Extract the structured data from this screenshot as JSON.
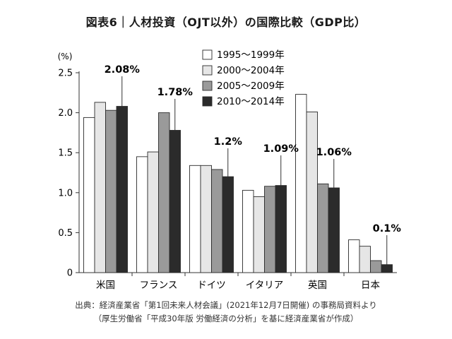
{
  "title": "図表6｜人材投資（OJT以外）の国際比較（GDP比）",
  "source_line1": "出典：経済産業省「第1回未来人材会議」(2021年12月7日開催) の事務局資料より",
  "source_line2": "（厚生労働省「平成30年版 労働経済の分析」を基に経済産業省が作成）",
  "chart_data": {
    "type": "bar",
    "title": "図表6｜人材投資（OJT以外）の国際比較（GDP比）",
    "unit_label": "(%)",
    "ylim": [
      0,
      2.5
    ],
    "yticks": [
      "0",
      "0.5",
      "1.0",
      "1.5",
      "2.0",
      "2.5"
    ],
    "grid": false,
    "legend_position": "top-right",
    "categories": [
      "米国",
      "フランス",
      "ドイツ",
      "イタリア",
      "英国",
      "日本"
    ],
    "series": [
      {
        "name": "1995〜1999年",
        "color": "#ffffff",
        "values": [
          1.94,
          1.45,
          1.34,
          1.03,
          2.23,
          0.41
        ]
      },
      {
        "name": "2000〜2004年",
        "color": "#e6e6e6",
        "values": [
          2.13,
          1.51,
          1.34,
          0.95,
          2.01,
          0.33
        ]
      },
      {
        "name": "2005〜2009年",
        "color": "#9a9a9a",
        "values": [
          2.03,
          2.0,
          1.29,
          1.08,
          1.11,
          0.15
        ]
      },
      {
        "name": "2010〜2014年",
        "color": "#2b2b2b",
        "values": [
          2.08,
          1.78,
          1.2,
          1.09,
          1.06,
          0.1
        ]
      }
    ],
    "annotations": [
      "2.08%",
      "1.78%",
      "1.2%",
      "1.09%",
      "1.06%",
      "0.1%"
    ]
  }
}
